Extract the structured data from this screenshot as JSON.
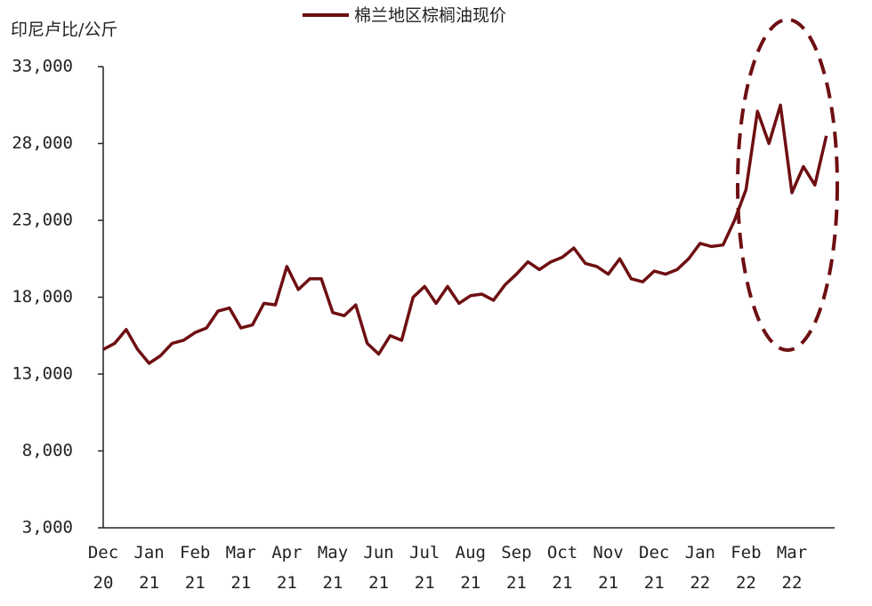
{
  "chart_data": {
    "type": "line",
    "y_label": "印尼卢比/公斤",
    "categories": [
      "Dec 20",
      null,
      null,
      null,
      "Jan 21",
      null,
      null,
      null,
      "Feb 21",
      null,
      null,
      null,
      "Mar 21",
      null,
      null,
      null,
      "Apr 21",
      null,
      null,
      null,
      "May 21",
      null,
      null,
      null,
      "Jun 21",
      null,
      null,
      null,
      "Jul 21",
      null,
      null,
      null,
      "Aug 21",
      null,
      null,
      null,
      "Sep 21",
      null,
      null,
      null,
      "Oct 21",
      null,
      null,
      null,
      "Nov 21",
      null,
      null,
      null,
      "Dec 21",
      null,
      null,
      null,
      "Jan 22",
      null,
      null,
      null,
      "Feb 22",
      null,
      null,
      null,
      "Mar 22",
      null,
      null,
      null
    ],
    "series": [
      {
        "name": "棉兰地区棕榈油现价",
        "color": "#6e0f12",
        "values": [
          14600,
          15000,
          15900,
          14600,
          13700,
          14200,
          15000,
          15200,
          15700,
          16000,
          17100,
          17300,
          16000,
          16200,
          17600,
          17500,
          20000,
          18500,
          19200,
          19200,
          17000,
          16800,
          17500,
          15000,
          14300,
          15500,
          15200,
          18000,
          18700,
          17600,
          18700,
          17600,
          18100,
          18200,
          17800,
          18800,
          19500,
          20300,
          19800,
          20300,
          20600,
          21200,
          20200,
          20000,
          19500,
          20500,
          19200,
          19000,
          19700,
          19500,
          19800,
          20500,
          21500,
          21300,
          21400,
          23000,
          25000,
          30100,
          28000,
          30500,
          24800,
          26500,
          25300,
          28500
        ]
      }
    ],
    "ylim": [
      3000,
      33000
    ],
    "yticks": [
      {
        "value": 3000,
        "label": "3,000"
      },
      {
        "value": 8000,
        "label": "8,000"
      },
      {
        "value": 13000,
        "label": "13,000"
      },
      {
        "value": 18000,
        "label": "18,000"
      },
      {
        "value": 23000,
        "label": "23,000"
      },
      {
        "value": 28000,
        "label": "28,000"
      },
      {
        "value": 33000,
        "label": "33,000"
      }
    ],
    "legend": "top"
  }
}
